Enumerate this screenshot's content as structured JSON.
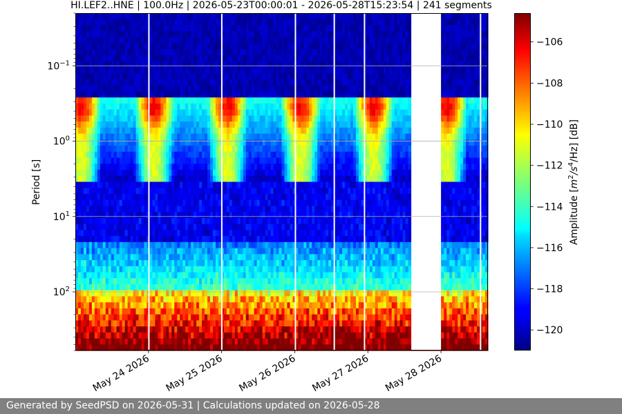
{
  "chart_data": {
    "type": "heatmap",
    "title": "HI.LEF2..HNE | 100.0Hz | 2026-05-23T00:00:01 - 2026-05-28T15:23:54 | 241 segments",
    "xlabel": "",
    "ylabel": "Period [s]",
    "colorbar_label": "Amplitude [m2/s4/Hz] [dB]",
    "colorbar_label_parts": {
      "prefix": "Amplitude [",
      "m": "m",
      "m_sup": "2",
      "mid": "/s",
      "s_sup": "4",
      "suffix": "/Hz] [dB]"
    },
    "colormap": "jet",
    "y_scale": "log",
    "y_inverted": true,
    "ylim": [
      0.02,
      600
    ],
    "xlim": [
      "2026-05-23T00:00:01",
      "2026-05-28T15:23:54"
    ],
    "clim": [
      -121,
      -104.6
    ],
    "y_ticks": [
      {
        "value": 0.1,
        "base": "10",
        "exp": "−1"
      },
      {
        "value": 1,
        "base": "10",
        "exp": "0"
      },
      {
        "value": 10,
        "base": "10",
        "exp": "1"
      },
      {
        "value": 100,
        "base": "10",
        "exp": "2"
      }
    ],
    "x_ticks": [
      {
        "date": "2026-05-24",
        "label": "May 24 2026"
      },
      {
        "date": "2026-05-25",
        "label": "May 25 2026"
      },
      {
        "date": "2026-05-26",
        "label": "May 26 2026"
      },
      {
        "date": "2026-05-27",
        "label": "May 27 2026"
      },
      {
        "date": "2026-05-28",
        "label": "May 28 2026"
      }
    ],
    "colorbar_ticks": [
      -106,
      -108,
      -110,
      -112,
      -114,
      -116,
      -118,
      -120
    ],
    "grid": "horizontal",
    "data_gaps": [
      {
        "start": "2026-05-23T23:55",
        "end": "2026-05-24T00:15"
      },
      {
        "start": "2026-05-24T23:50",
        "end": "2026-05-25T00:10"
      },
      {
        "start": "2026-05-26T00:00",
        "end": "2026-05-26T00:12"
      },
      {
        "start": "2026-05-26T12:45",
        "end": "2026-05-26T13:00"
      },
      {
        "start": "2026-05-26T22:40",
        "end": "2026-05-26T23:00"
      },
      {
        "start": "2026-05-27T14:15",
        "end": "2026-05-27T24:00"
      },
      {
        "start": "2026-05-28T12:45",
        "end": "2026-05-28T13:00"
      }
    ],
    "segments": 241
  },
  "footer": {
    "text": "Generated by SeedPSD on 2026-05-31 | Calculations updated on 2026-05-28"
  }
}
